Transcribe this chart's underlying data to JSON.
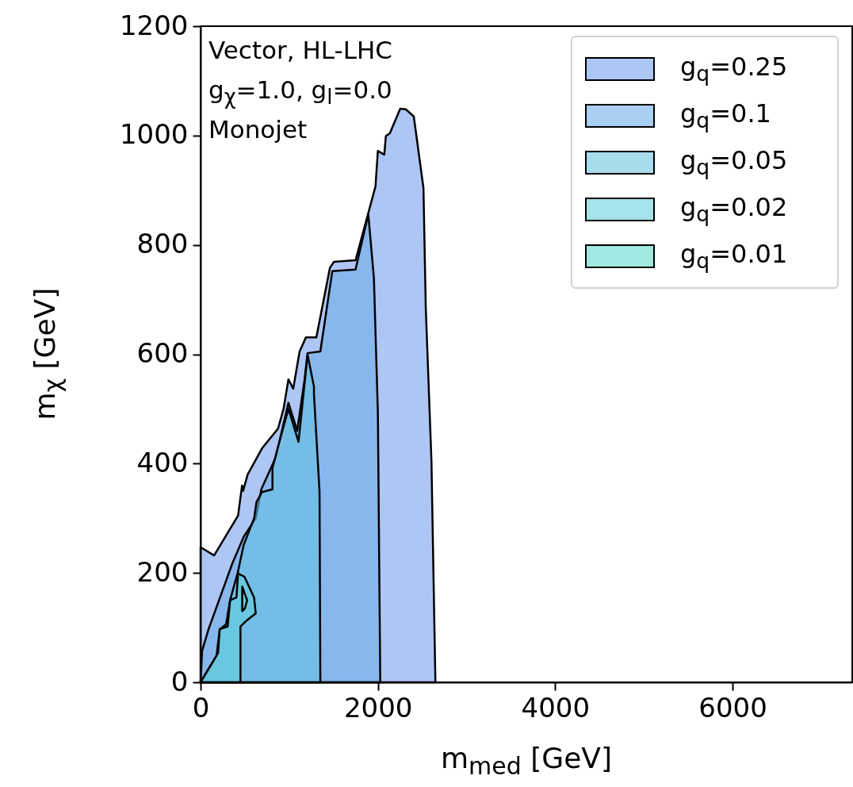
{
  "chart_data": {
    "type": "area",
    "xlabel": "m$_{med}$ [GeV]",
    "ylabel": "m$_{χ}$ [GeV]",
    "annotations": [
      "Vector, HL-LHC",
      "g$_{χ}$=1.0, g$_{l}$=0.0",
      "Monojet"
    ],
    "xlim": [
      0,
      7350
    ],
    "ylim": [
      0,
      1200
    ],
    "xticks": [
      0,
      {
        "value": 2000,
        "label": "2000"
      },
      {
        "value": 4000,
        "label": "4000"
      },
      {
        "value": 6000,
        "label": "6000"
      }
    ],
    "yticks": [
      0,
      200,
      400,
      600,
      800,
      {
        "value": 1000,
        "label": "1000"
      },
      {
        "value": 1200,
        "label": "1200"
      }
    ],
    "legend": "top right",
    "line_style": "solid",
    "marker": "none",
    "series": [
      {
        "name": "g$_{q}$=0.25",
        "color": "#aec6f4",
        "x": [
          0,
          0,
          153,
          423,
          468,
          480,
          531,
          694,
          874,
          937,
          991,
          1045,
          1117,
          1189,
          1306,
          1459,
          1505,
          1748,
          1973,
          2000,
          2072,
          2090,
          2135,
          2252,
          2315,
          2405,
          2514,
          2540,
          2604,
          2649
        ],
        "values": [
          0,
          247,
          232,
          305,
          360,
          350,
          380,
          428,
          464,
          501,
          554,
          537,
          605,
          631,
          631,
          758,
          769,
          772,
          907,
          972,
          965,
          999,
          1004,
          1049,
          1048,
          1035,
          904,
          686,
          406,
          0
        ]
      },
      {
        "name": "g$_{q}$=0.1",
        "color": "#a9cff2",
        "x": [
          0,
          18,
          90,
          360,
          486,
          622,
          685,
          847,
          991,
          1090,
          1171,
          1207,
          1351,
          1486,
          1748,
          1892,
          1955,
          2000,
          2027
        ],
        "values": [
          0,
          58,
          97,
          218,
          266,
          300,
          353,
          411,
          511,
          460,
          551,
          602,
          605,
          752,
          755,
          856,
          740,
          493,
          0
        ]
      },
      {
        "name": "g$_{q}$=0.05",
        "color": "#a7dbee",
        "x": [
          0,
          180,
          216,
          288,
          333,
          423,
          486,
          604,
          631,
          694,
          811,
          811,
          874,
          991,
          1105,
          1207,
          1279,
          1279,
          1342,
          1351
        ],
        "values": [
          0,
          48,
          97,
          106,
          150,
          203,
          251,
          300,
          330,
          348,
          353,
          392,
          431,
          500,
          440,
          599,
          541,
          527,
          348,
          0
        ]
      },
      {
        "name": "g$_{q}$=0.02",
        "color": "#a4e3ea",
        "x": [
          0,
          198,
          216,
          306,
          333,
          405,
          423,
          495,
          604,
          622,
          513,
          450,
          450
        ],
        "values": [
          0,
          54,
          97,
          102,
          150,
          155,
          199,
          193,
          155,
          126,
          112,
          102,
          0
        ]
      },
      {
        "name": "g$_{q}$=0.01",
        "color": "#9fe9e0",
        "x": [
          470,
          470,
          525,
          500
        ],
        "values": [
          130,
          175,
          150,
          135
        ]
      }
    ]
  }
}
